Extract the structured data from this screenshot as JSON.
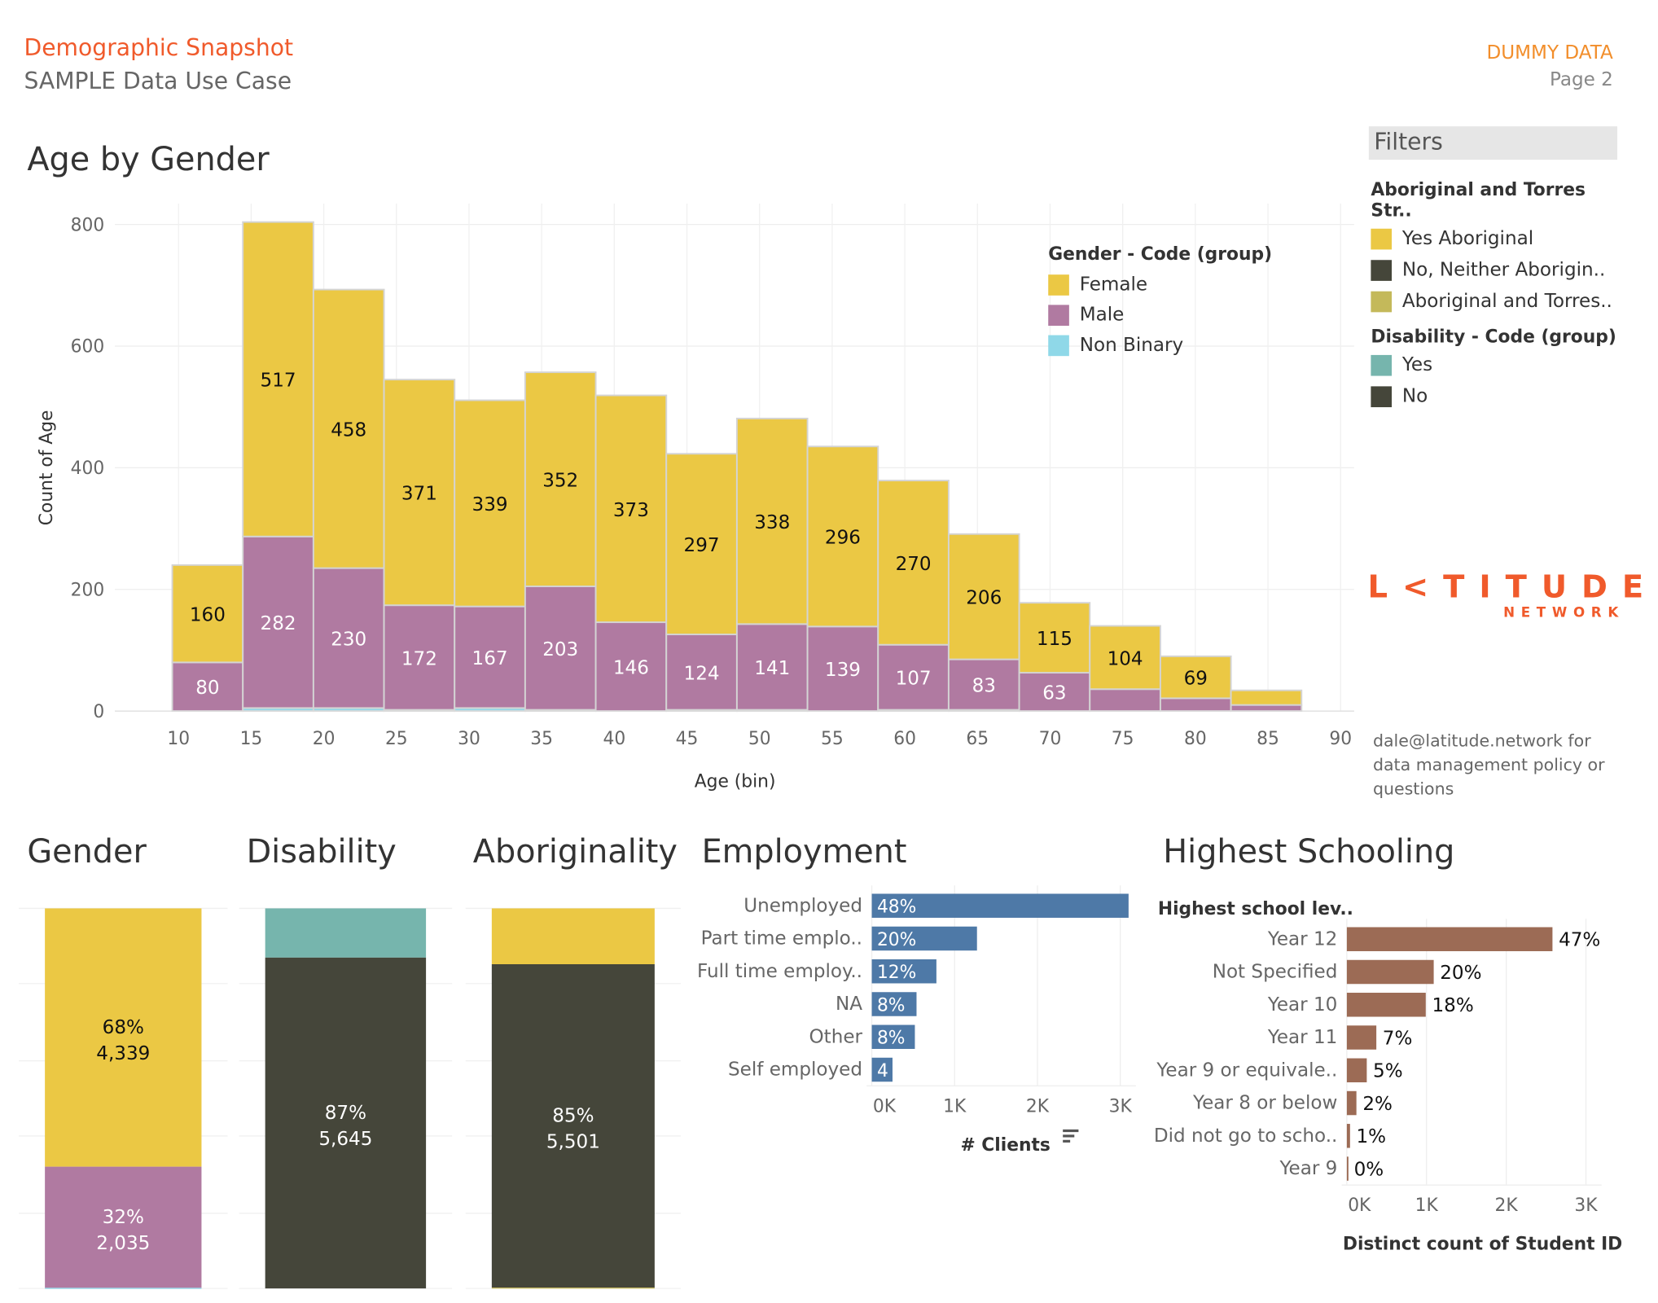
{
  "header": {
    "title": "Demographic Snapshot",
    "subtitle": "SAMPLE Data Use Case",
    "badge": "DUMMY DATA",
    "page": "Page 2"
  },
  "filters": {
    "title": "Filters",
    "group1": {
      "title": "Aboriginal and Torres Str..",
      "items": [
        {
          "label": "Yes Aboriginal",
          "color": "#EBC844"
        },
        {
          "label": "No, Neither Aborigin..",
          "color": "#45463A"
        },
        {
          "label": "Aboriginal and Torres..",
          "color": "#C4B95A"
        }
      ]
    },
    "group2": {
      "title": "Disability - Code (group)",
      "items": [
        {
          "label": "Yes",
          "color": "#76B5AD"
        },
        {
          "label": "No",
          "color": "#45463A"
        }
      ]
    }
  },
  "logo": {
    "text": "L<TITUDE",
    "sub": "NETWORK",
    "color": "#F05A2B"
  },
  "contact": [
    "dale@latitude.network for",
    "data management policy or",
    "questions"
  ],
  "chart_data": [
    {
      "type": "bar",
      "title": "Age by Gender",
      "xlabel": "Age (bin)",
      "ylabel": "Count of Age",
      "stacked": true,
      "ylim": [
        0,
        800
      ],
      "yticks": [
        0,
        200,
        400,
        600,
        800
      ],
      "xticks": [
        10,
        15,
        20,
        25,
        30,
        35,
        40,
        45,
        50,
        55,
        60,
        65,
        70,
        75,
        80,
        85,
        90
      ],
      "grid": true,
      "legend": {
        "title": "Gender - Code (group)",
        "placement": "top-right"
      },
      "categories": [
        10,
        15,
        20,
        25,
        30,
        35,
        40,
        45,
        50,
        55,
        60,
        65,
        70,
        75,
        80,
        85
      ],
      "series": [
        {
          "name": "Non Binary",
          "color": "#8FD8E8",
          "values": [
            0,
            5,
            5,
            2,
            5,
            2,
            0,
            2,
            2,
            0,
            2,
            2,
            0,
            0,
            0,
            0
          ]
        },
        {
          "name": "Male",
          "color": "#B07AA1",
          "values": [
            80,
            282,
            230,
            172,
            167,
            203,
            146,
            124,
            141,
            139,
            107,
            83,
            63,
            36,
            21,
            10
          ],
          "labels": [
            true,
            true,
            true,
            true,
            true,
            true,
            true,
            true,
            true,
            true,
            true,
            true,
            true,
            false,
            false,
            false
          ]
        },
        {
          "name": "Female",
          "color": "#EBC844",
          "values": [
            160,
            517,
            458,
            371,
            339,
            352,
            373,
            297,
            338,
            296,
            270,
            206,
            115,
            104,
            69,
            24
          ],
          "labels": [
            true,
            true,
            true,
            true,
            true,
            true,
            true,
            true,
            true,
            true,
            true,
            true,
            true,
            true,
            true,
            false
          ]
        }
      ]
    },
    {
      "type": "bar",
      "title": "Gender",
      "stacked": true,
      "segments": [
        {
          "label": "68%",
          "value": "4,339",
          "v": 4339,
          "color": "#EBC844"
        },
        {
          "label": "32%",
          "value": "2,035",
          "v": 2035,
          "color": "#B07AA1"
        },
        {
          "v": 10,
          "color": "#8FD8E8"
        }
      ]
    },
    {
      "type": "bar",
      "title": "Disability",
      "stacked": true,
      "segments": [
        {
          "v": 840,
          "color": "#76B5AD"
        },
        {
          "label": "87%",
          "value": "5,645",
          "v": 5645,
          "color": "#45463A"
        }
      ]
    },
    {
      "type": "bar",
      "title": "Aboriginality",
      "stacked": true,
      "segments": [
        {
          "v": 950,
          "color": "#EBC844"
        },
        {
          "label": "85%",
          "value": "5,501",
          "v": 5501,
          "color": "#45463A"
        },
        {
          "v": 15,
          "color": "#C4B95A"
        }
      ]
    },
    {
      "type": "bar",
      "orientation": "horizontal",
      "title": "Employment",
      "xlabel": "# Clients",
      "xticks": [
        "0K",
        "1K",
        "2K",
        "3K"
      ],
      "xlim": [
        0,
        3000
      ],
      "color": "#4E79A7",
      "categories": [
        "Unemployed",
        "Part time emplo..",
        "Full time employ..",
        "NA",
        "Other",
        "Self employed"
      ],
      "values": [
        3100,
        1270,
        780,
        540,
        520,
        250
      ],
      "labels": [
        "48%",
        "20%",
        "12%",
        "8%",
        "8%",
        "4%"
      ]
    },
    {
      "type": "bar",
      "orientation": "horizontal",
      "title": "Highest Schooling",
      "header": "Highest school lev..",
      "xlabel": "Distinct count of Student ID",
      "xticks": [
        "0K",
        "1K",
        "2K",
        "3K"
      ],
      "xlim": [
        0,
        3000
      ],
      "color": "#9C6B55",
      "categories": [
        "Year 12",
        "Not Specified",
        "Year 10",
        "Year 11",
        "Year 9 or equivale..",
        "Year 8 or below",
        "Did not go to scho..",
        "Year 9"
      ],
      "values": [
        2580,
        1090,
        990,
        370,
        250,
        120,
        40,
        10
      ],
      "labels": [
        "47%",
        "20%",
        "18%",
        "7%",
        "5%",
        "2%",
        "1%",
        "0%"
      ]
    }
  ]
}
